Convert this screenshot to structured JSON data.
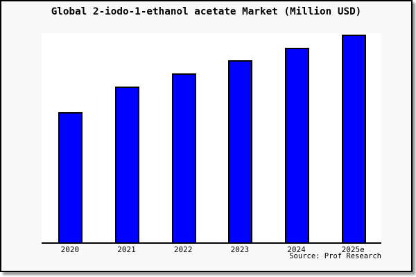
{
  "page": {
    "title": "Global 2-iodo-1-ethanol acetate Market (Million USD)",
    "source_note": "Source: Prof Research"
  },
  "colors": {
    "bar_fill": "#0000ff",
    "bar_border": "#000000",
    "frame_background": "#f9f9f9",
    "plot_background": "#ffffff",
    "axis_line": "#000000",
    "frame_border": "#000000",
    "shadow": "#999999",
    "text": "#000000"
  },
  "chart_data": {
    "type": "bar",
    "title": "Global 2-iodo-1-ethanol acetate Market (Million USD)",
    "categories": [
      "2020",
      "2021",
      "2022",
      "2023",
      "2024",
      "2025e"
    ],
    "values": [
      62.6,
      75.1,
      81.4,
      87.7,
      93.7,
      100
    ],
    "values_note": "y-axis has no tick labels; values estimated from bar heights as percent of the 2025e bar",
    "xlabel": "",
    "ylabel": "",
    "ylim": [
      0,
      100.8
    ],
    "grid": false,
    "legend": false,
    "source": "Source: Prof Research"
  }
}
